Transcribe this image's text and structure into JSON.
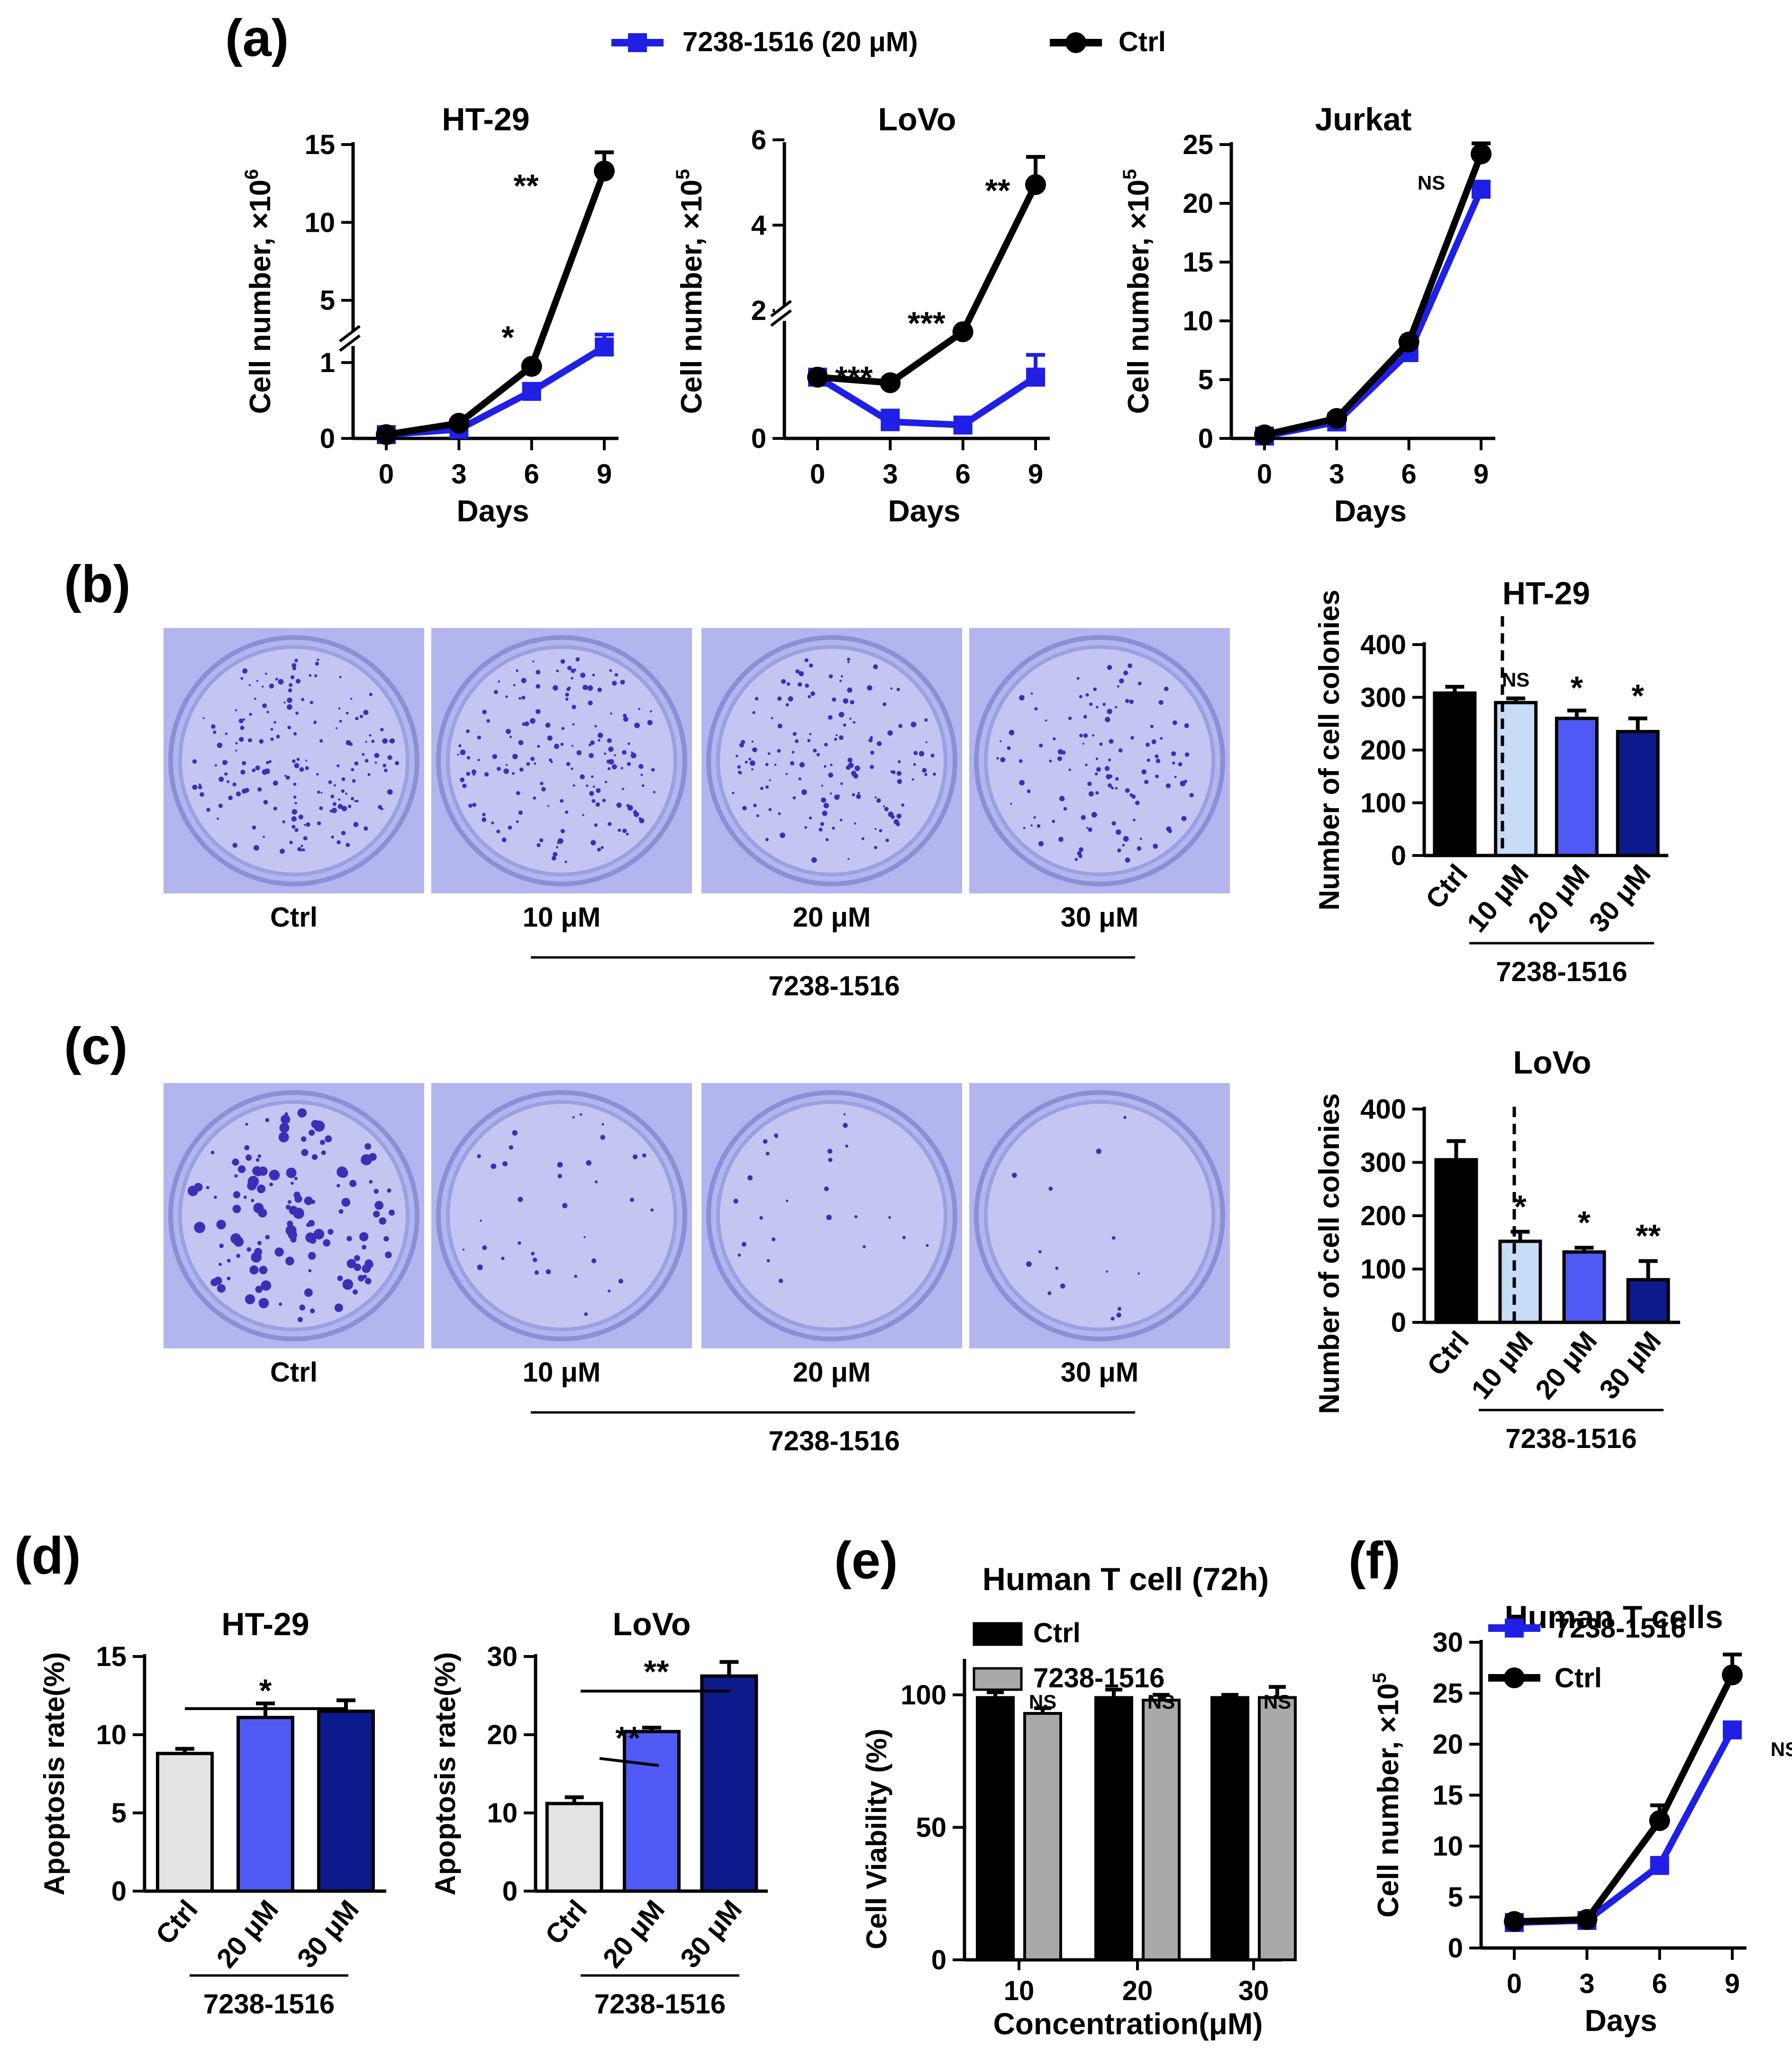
{
  "panel_labels": {
    "a": "(a)",
    "b": "(b)",
    "c": "(c)",
    "d": "(d)",
    "e": "(e)",
    "f": "(f)"
  },
  "colors": {
    "ctrl": "#000000",
    "treat": "#1f1fe6",
    "light_blue": "#c6dcf7",
    "mid_blue": "#4f5af5",
    "dark_blue": "#0d1a8c",
    "light_gray": "#e3e3e3",
    "gray": "#a9a9a9",
    "plate_bg": "#b3b5ef",
    "colony": "#3b2fb8"
  },
  "legend_a": {
    "treat_label": "7238-1516 (20 μM)",
    "ctrl_label": "Ctrl"
  },
  "plates": {
    "b": {
      "labels": [
        "Ctrl",
        "10 μM",
        "20 μM",
        "30 μM"
      ],
      "group_label": "7238-1516"
    },
    "c": {
      "labels": [
        "Ctrl",
        "10 μM",
        "20 μM",
        "30 μM"
      ],
      "group_label": "7238-1516"
    }
  },
  "chart_data": [
    {
      "id": "a1",
      "type": "line",
      "title": "HT-29",
      "xlabel": "Days",
      "ylabel": "Cell number, ×10",
      "ylabel_exp": "6",
      "x": [
        0,
        3,
        6,
        9
      ],
      "xticks": [
        "0",
        "3",
        "6",
        "9"
      ],
      "yticks": [
        "0",
        "1",
        "5",
        "10",
        "15"
      ],
      "axis_break": true,
      "series": [
        {
          "name": "7238-1516 (20 μM)",
          "values": [
            0.05,
            0.12,
            0.62,
            2.0
          ],
          "err": [
            0.0,
            0.0,
            0.05,
            0.8
          ]
        },
        {
          "name": "Ctrl",
          "values": [
            0.05,
            0.2,
            0.95,
            13.3
          ],
          "err": [
            0.0,
            0.0,
            0.0,
            1.2
          ]
        }
      ],
      "annotations": [
        "*",
        "**"
      ]
    },
    {
      "id": "a2",
      "type": "line",
      "title": "LoVo",
      "xlabel": "Days",
      "ylabel": "Cell number, ×10",
      "ylabel_exp": "5",
      "x": [
        0,
        3,
        6,
        9
      ],
      "xticks": [
        "0",
        "3",
        "6",
        "9"
      ],
      "yticks": [
        "0",
        "2",
        "4",
        "6"
      ],
      "axis_break": true,
      "series": [
        {
          "name": "7238-1516 (20 μM)",
          "values": [
            0.55,
            0.15,
            0.12,
            0.55
          ],
          "err": [
            0.0,
            0.1,
            0.0,
            0.2
          ]
        },
        {
          "name": "Ctrl",
          "values": [
            0.55,
            0.5,
            1.5,
            4.95
          ],
          "err": [
            0.0,
            0.0,
            0.0,
            0.65
          ]
        }
      ],
      "annotations": [
        "***",
        "***",
        "**"
      ]
    },
    {
      "id": "a3",
      "type": "line",
      "title": "Jurkat",
      "xlabel": "Days",
      "ylabel": "Cell number, ×10",
      "ylabel_exp": "5",
      "x": [
        0,
        3,
        6,
        9
      ],
      "xticks": [
        "0",
        "3",
        "6",
        "9"
      ],
      "yticks": [
        "0",
        "5",
        "10",
        "15",
        "20",
        "25"
      ],
      "ylim": [
        0,
        25
      ],
      "series": [
        {
          "name": "7238-1516 (20 μM)",
          "values": [
            0.2,
            1.4,
            7.3,
            21.2
          ],
          "err": [
            0,
            0,
            0,
            0
          ]
        },
        {
          "name": "Ctrl",
          "values": [
            0.3,
            1.7,
            8.2,
            24.2
          ],
          "err": [
            0,
            0,
            0,
            0.9
          ]
        }
      ],
      "annotations": [
        "NS"
      ]
    },
    {
      "id": "b",
      "type": "bar",
      "title": "HT-29",
      "ylabel": "Number of cell colonies",
      "categories": [
        "Ctrl",
        "10 μM",
        "20 μM",
        "30 μM"
      ],
      "group_label": "7238-1516",
      "values": [
        308,
        290,
        260,
        235
      ],
      "err": [
        12,
        8,
        15,
        25
      ],
      "ylim": [
        0,
        400
      ],
      "yticks": [
        "0",
        "100",
        "200",
        "300",
        "400"
      ],
      "annotations": [
        "",
        "NS",
        "*",
        "*"
      ]
    },
    {
      "id": "c",
      "type": "bar",
      "title": "LoVo",
      "ylabel": "Number of cell colonies",
      "categories": [
        "Ctrl",
        "10 μM",
        "20 μM",
        "30 μM"
      ],
      "group_label": "7238-1516",
      "values": [
        305,
        152,
        132,
        80
      ],
      "err": [
        35,
        18,
        8,
        35
      ],
      "ylim": [
        0,
        400
      ],
      "yticks": [
        "0",
        "100",
        "200",
        "300",
        "400"
      ],
      "annotations": [
        "",
        "*",
        "*",
        "**"
      ]
    },
    {
      "id": "d1",
      "type": "bar",
      "title": "HT-29",
      "ylabel": "Apoptosis rate(%)",
      "categories": [
        "Ctrl",
        "20 μM",
        "30 μM"
      ],
      "group_label": "7238-1516",
      "values": [
        8.8,
        11.1,
        11.5
      ],
      "err": [
        0.3,
        0.9,
        0.7
      ],
      "ylim": [
        0,
        15
      ],
      "yticks": [
        "0",
        "5",
        "10",
        "15"
      ],
      "annotations": [
        "*"
      ]
    },
    {
      "id": "d2",
      "type": "bar",
      "title": "LoVo",
      "ylabel": "Apoptosis rate(%)",
      "categories": [
        "Ctrl",
        "20 μM",
        "30 μM"
      ],
      "group_label": "7238-1516",
      "values": [
        11.2,
        20.4,
        27.5
      ],
      "err": [
        0.8,
        0.5,
        1.8
      ],
      "ylim": [
        0,
        30
      ],
      "yticks": [
        "0",
        "10",
        "20",
        "30"
      ],
      "annotations": [
        "**",
        "**"
      ]
    },
    {
      "id": "e",
      "type": "bar",
      "title": "Human T cell (72h)",
      "ylabel": "Cell Viability (%)",
      "xlabel": "Concentration(μM)",
      "categories": [
        "10",
        "20",
        "30"
      ],
      "series": [
        {
          "name": "Ctrl",
          "values": [
            99,
            99,
            99
          ],
          "err": [
            2,
            3,
            1
          ]
        },
        {
          "name": "7238-1516",
          "values": [
            93,
            98,
            99
          ],
          "err": [
            2,
            2,
            4
          ]
        }
      ],
      "ylim": [
        0,
        110
      ],
      "yticks": [
        "0",
        "50",
        "100"
      ],
      "annotations": [
        "NS",
        "NS",
        "NS"
      ]
    },
    {
      "id": "f",
      "type": "line",
      "title": "Human T cells",
      "xlabel": "Days",
      "ylabel": "Cell number, ×10",
      "ylabel_exp": "5",
      "x": [
        0,
        3,
        6,
        9
      ],
      "xticks": [
        "0",
        "3",
        "6",
        "9"
      ],
      "yticks": [
        "0",
        "5",
        "10",
        "15",
        "20",
        "25",
        "30"
      ],
      "ylim": [
        0,
        30
      ],
      "series": [
        {
          "name": "7238-1516",
          "values": [
            2.5,
            2.7,
            8.1,
            21.4
          ],
          "err": [
            0,
            0,
            0,
            0
          ]
        },
        {
          "name": "Ctrl",
          "values": [
            2.6,
            2.8,
            12.5,
            26.8
          ],
          "err": [
            0,
            0,
            1.5,
            2.0
          ]
        }
      ],
      "annotations": [
        "NS"
      ]
    }
  ]
}
